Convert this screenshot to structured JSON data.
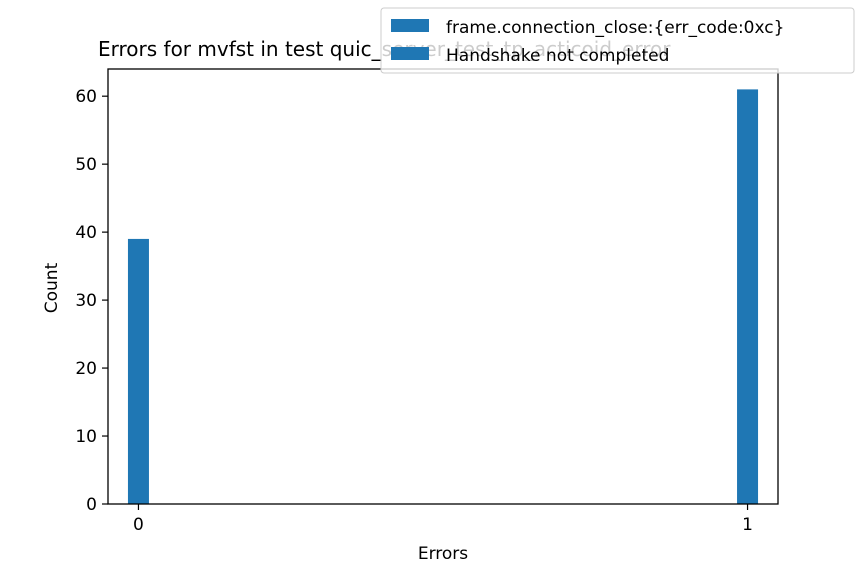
{
  "chart_data": {
    "type": "bar",
    "title": "Errors for mvfst in test quic_server_test_tp_acticoid_error",
    "xlabel": "Errors",
    "ylabel": "Count",
    "categories": [
      "0",
      "1"
    ],
    "x": [
      0,
      1
    ],
    "series": [
      {
        "values": [
          39,
          61
        ]
      }
    ],
    "xlim": [
      -0.05,
      1.05
    ],
    "ylim": [
      0,
      64
    ],
    "yticks": [
      0,
      10,
      20,
      30,
      40,
      50,
      60
    ],
    "bar_color": "#1f77b4",
    "grid": false,
    "legend_position": "top-right",
    "legend_entries": [
      "frame.connection_close:{err_code:0xc}",
      "Handshake not completed"
    ]
  }
}
